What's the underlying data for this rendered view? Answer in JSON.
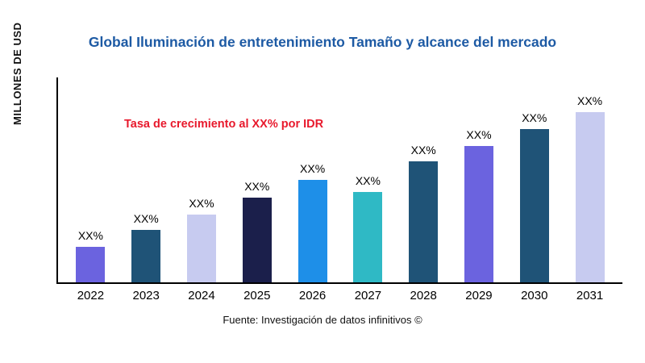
{
  "title": "Global Iluminación de entretenimiento Tamaño y alcance del mercado",
  "y_axis_label": "MILLONES DE USD",
  "annotation": "Tasa de crecimiento al XX% por IDR",
  "source": "Fuente: Investigación de datos infinitivos ©",
  "colors": {
    "title": "#1d5aa4",
    "annotation": "#e8192c",
    "axis": "#000000"
  },
  "chart_data": {
    "type": "bar",
    "title": "Global Iluminación de entretenimiento Tamaño y alcance del mercado",
    "xlabel": "",
    "ylabel": "MILLONES DE USD",
    "categories": [
      "2022",
      "2023",
      "2024",
      "2025",
      "2026",
      "2027",
      "2028",
      "2029",
      "2030",
      "2031"
    ],
    "values": [
      21,
      31,
      40,
      50,
      60,
      53,
      71,
      80,
      90,
      100
    ],
    "bar_labels": [
      "XX%",
      "XX%",
      "XX%",
      "XX%",
      "XX%",
      "XX%",
      "XX%",
      "XX%",
      "XX%",
      "XX%"
    ],
    "bar_colors": [
      "#6b63df",
      "#1f5377",
      "#c7cbf0",
      "#1b1f4b",
      "#1e8fe8",
      "#2fb9c5",
      "#1f5377",
      "#6b63df",
      "#1f5377",
      "#c7cbf0"
    ],
    "ylim": [
      0,
      110
    ],
    "y_tick_labels": [],
    "grid": false,
    "legend": "none",
    "annotations": [
      "Tasa de crecimiento al XX% por IDR"
    ]
  }
}
